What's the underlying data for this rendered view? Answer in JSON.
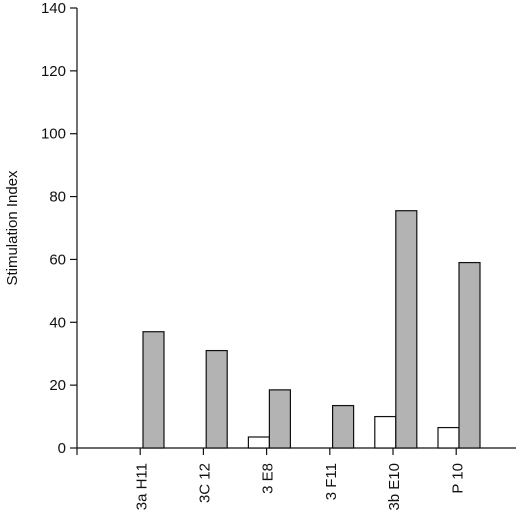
{
  "chart_data": {
    "type": "bar",
    "title": "",
    "xlabel": "",
    "ylabel": "Stimulation Index",
    "ylim": [
      0,
      140
    ],
    "yticks": [
      0,
      20,
      40,
      60,
      80,
      100,
      120,
      140
    ],
    "categories": [
      "3a H11",
      "3C 12",
      "3 E8",
      "3 F11",
      "3b E10",
      "P 10"
    ],
    "series": [
      {
        "values": [
          0,
          0,
          3.5,
          0,
          10,
          6.5
        ],
        "color": "#ffffff"
      },
      {
        "values": [
          37,
          31,
          18.5,
          13.5,
          75.5,
          59
        ],
        "color": "#b3b3b3"
      }
    ],
    "grid": false,
    "legend": "none"
  }
}
